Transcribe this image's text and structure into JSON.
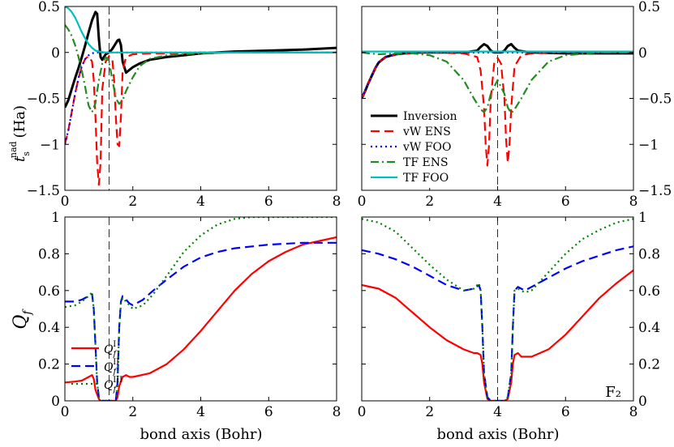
{
  "figure_label": "F₂",
  "chart_data": [
    {
      "id": "top-left",
      "type": "line",
      "xlim": [
        0,
        8
      ],
      "ylim": [
        -1.5,
        0.5
      ],
      "xticks": [
        "0",
        "2",
        "4",
        "6",
        "8"
      ],
      "yticks": [
        "0.5",
        "0",
        "−0.5",
        "−1",
        "−1.5"
      ],
      "ylabel": "t_s^nad (Ha)",
      "bond_length": 1.3,
      "series": [
        {
          "name": "Inversion",
          "color": "#000000",
          "style": "solid",
          "x": [
            0,
            0.1,
            0.2,
            0.3,
            0.4,
            0.5,
            0.6,
            0.7,
            0.8,
            0.9,
            0.95,
            1.0,
            1.05,
            1.1,
            1.15,
            1.2,
            1.3,
            1.4,
            1.5,
            1.55,
            1.6,
            1.65,
            1.7,
            1.8,
            1.9,
            2.0,
            2.2,
            2.5,
            3,
            3.5,
            4,
            5,
            6,
            7,
            8
          ],
          "y": [
            -0.6,
            -0.52,
            -0.4,
            -0.28,
            -0.17,
            -0.05,
            0.08,
            0.22,
            0.35,
            0.44,
            0.42,
            0.15,
            -0.05,
            -0.08,
            -0.05,
            -0.02,
            0.0,
            0.04,
            0.1,
            0.13,
            0.14,
            0.08,
            -0.1,
            -0.22,
            -0.19,
            -0.16,
            -0.12,
            -0.08,
            -0.05,
            -0.03,
            -0.01,
            0.01,
            0.02,
            0.03,
            0.05
          ]
        },
        {
          "name": "vW ENS",
          "color": "#ff0000",
          "style": "dashed",
          "x": [
            0,
            0.1,
            0.2,
            0.3,
            0.4,
            0.5,
            0.6,
            0.7,
            0.8,
            0.85,
            0.9,
            0.95,
            1.0,
            1.05,
            1.1,
            1.2,
            1.3,
            1.4,
            1.45,
            1.5,
            1.55,
            1.6,
            1.65,
            1.7,
            1.8,
            2,
            2.5,
            3,
            4,
            6,
            8
          ],
          "y": [
            -1.0,
            -0.85,
            -0.65,
            -0.45,
            -0.28,
            -0.15,
            -0.07,
            -0.04,
            -0.1,
            -0.3,
            -0.7,
            -1.2,
            -1.44,
            -1.2,
            -0.4,
            -0.1,
            -0.04,
            -0.08,
            -0.3,
            -0.7,
            -1.0,
            -1.02,
            -0.7,
            -0.2,
            -0.05,
            -0.02,
            -0.01,
            -0.01,
            0,
            0,
            0
          ]
        },
        {
          "name": "vW FOO",
          "color": "#0000ff",
          "style": "dotted",
          "x": [
            0,
            0.1,
            0.2,
            0.3,
            0.4,
            0.5,
            0.6,
            0.7,
            0.8,
            0.9,
            1.0,
            1.2,
            1.5,
            2,
            4,
            8
          ],
          "y": [
            -1.0,
            -0.85,
            -0.65,
            -0.45,
            -0.28,
            -0.15,
            -0.07,
            -0.03,
            -0.01,
            0,
            0,
            0,
            0,
            0,
            0,
            0
          ]
        },
        {
          "name": "TF ENS",
          "color": "#228b22",
          "style": "dashdot",
          "x": [
            0,
            0.1,
            0.2,
            0.3,
            0.4,
            0.5,
            0.6,
            0.7,
            0.8,
            0.9,
            1.0,
            1.1,
            1.2,
            1.3,
            1.4,
            1.5,
            1.6,
            1.7,
            1.8,
            2.0,
            2.2,
            2.5,
            3,
            3.5,
            4,
            5,
            6,
            8
          ],
          "y": [
            0.3,
            0.25,
            0.18,
            0.08,
            -0.05,
            -0.2,
            -0.38,
            -0.58,
            -0.65,
            -0.55,
            -0.3,
            -0.12,
            -0.05,
            -0.1,
            -0.3,
            -0.5,
            -0.56,
            -0.52,
            -0.42,
            -0.27,
            -0.15,
            -0.07,
            -0.03,
            -0.02,
            -0.01,
            0,
            0,
            0
          ]
        },
        {
          "name": "TF FOO",
          "color": "#00bfbf",
          "style": "solid",
          "x": [
            0,
            0.1,
            0.2,
            0.3,
            0.4,
            0.5,
            0.6,
            0.7,
            0.8,
            0.9,
            1.0,
            1.2,
            1.5,
            2,
            4,
            8
          ],
          "y": [
            0.5,
            0.48,
            0.44,
            0.38,
            0.3,
            0.22,
            0.15,
            0.09,
            0.05,
            0.02,
            0.01,
            0,
            0,
            0,
            0,
            0
          ]
        }
      ]
    },
    {
      "id": "top-right",
      "type": "line",
      "xlim": [
        0,
        8
      ],
      "ylim": [
        -1.5,
        0.5
      ],
      "xticks": [
        "0",
        "2",
        "4",
        "6",
        "8"
      ],
      "yticks": [
        "0.5",
        "0",
        "−0.5",
        "−1",
        "−1.5"
      ],
      "bond_length": 4.0,
      "series": [
        {
          "name": "Inversion",
          "color": "#000000",
          "style": "solid",
          "x": [
            0,
            0.1,
            0.2,
            0.3,
            0.4,
            0.5,
            0.7,
            1.0,
            1.5,
            2,
            3,
            3.4,
            3.5,
            3.6,
            3.7,
            3.8,
            3.9,
            4.0,
            4.1,
            4.2,
            4.3,
            4.4,
            4.5,
            4.6,
            5,
            6,
            7,
            8
          ],
          "y": [
            -0.5,
            -0.42,
            -0.33,
            -0.25,
            -0.17,
            -0.11,
            -0.05,
            -0.02,
            0,
            0,
            0,
            0.02,
            0.06,
            0.09,
            0.07,
            0.02,
            0,
            0,
            0,
            0.02,
            0.07,
            0.09,
            0.05,
            0.02,
            0,
            -0.01,
            -0.01,
            -0.01
          ]
        },
        {
          "name": "vW ENS",
          "color": "#ff0000",
          "style": "dashed",
          "x": [
            0,
            0.1,
            0.2,
            0.3,
            0.4,
            0.5,
            0.7,
            1.0,
            2,
            3,
            3.4,
            3.5,
            3.6,
            3.65,
            3.7,
            3.75,
            3.8,
            3.9,
            4.0,
            4.1,
            4.2,
            4.25,
            4.3,
            4.35,
            4.4,
            4.5,
            4.7,
            5,
            6,
            8
          ],
          "y": [
            -0.5,
            -0.42,
            -0.33,
            -0.25,
            -0.17,
            -0.11,
            -0.05,
            -0.02,
            0,
            -0.01,
            -0.05,
            -0.2,
            -0.6,
            -1.0,
            -1.23,
            -1.0,
            -0.5,
            -0.12,
            -0.06,
            -0.12,
            -0.5,
            -0.95,
            -1.2,
            -1.0,
            -0.6,
            -0.15,
            -0.03,
            -0.01,
            0,
            0
          ]
        },
        {
          "name": "vW FOO",
          "color": "#0000ff",
          "style": "dotted",
          "x": [
            0,
            0.1,
            0.2,
            0.3,
            0.4,
            0.5,
            0.7,
            1.0,
            1.5,
            2,
            4,
            8
          ],
          "y": [
            -0.5,
            -0.42,
            -0.33,
            -0.25,
            -0.17,
            -0.11,
            -0.05,
            -0.02,
            0,
            0,
            0,
            0
          ]
        },
        {
          "name": "TF ENS",
          "color": "#228b22",
          "style": "dashdot",
          "x": [
            0,
            0.2,
            0.5,
            1.0,
            1.5,
            2,
            2.5,
            3,
            3.3,
            3.5,
            3.6,
            3.7,
            3.8,
            4.0,
            4.2,
            4.3,
            4.4,
            4.5,
            4.7,
            5,
            5.5,
            6,
            7,
            8
          ],
          "y": [
            0,
            -0.01,
            -0.02,
            -0.01,
            -0.01,
            -0.03,
            -0.1,
            -0.3,
            -0.5,
            -0.62,
            -0.65,
            -0.6,
            -0.45,
            -0.3,
            -0.45,
            -0.6,
            -0.66,
            -0.62,
            -0.5,
            -0.3,
            -0.1,
            -0.03,
            0,
            0
          ]
        },
        {
          "name": "TF FOO",
          "color": "#00bfbf",
          "style": "solid",
          "x": [
            0,
            8
          ],
          "y": [
            0.01,
            0.01
          ]
        }
      ]
    },
    {
      "id": "bottom-left",
      "type": "line",
      "xlim": [
        0,
        8
      ],
      "ylim": [
        0,
        1
      ],
      "xticks": [
        "0",
        "2",
        "4",
        "6",
        "8"
      ],
      "yticks": [
        "1",
        "0.8",
        "0.6",
        "0.4",
        "0.2",
        "0"
      ],
      "xlabel": "bond axis (Bohr)",
      "ylabel": "Q_f",
      "bond_length": 1.3,
      "series": [
        {
          "name": "Q_f^I",
          "color": "#ff0000",
          "style": "solid",
          "x": [
            0,
            0.3,
            0.5,
            0.7,
            0.8,
            0.85,
            0.9,
            1.0,
            1.05,
            1.1,
            1.5,
            1.55,
            1.6,
            1.7,
            1.8,
            1.9,
            2.0,
            2.5,
            3,
            3.5,
            4,
            4.5,
            5,
            5.5,
            6,
            6.5,
            7,
            7.5,
            8
          ],
          "y": [
            0.1,
            0.105,
            0.11,
            0.13,
            0.14,
            0.12,
            0.06,
            0.01,
            0,
            0,
            0,
            0.02,
            0.08,
            0.13,
            0.14,
            0.13,
            0.13,
            0.15,
            0.2,
            0.28,
            0.38,
            0.49,
            0.6,
            0.69,
            0.76,
            0.81,
            0.85,
            0.87,
            0.89
          ]
        },
        {
          "name": "Q_f^II",
          "color": "#0000ff",
          "style": "dashed",
          "x": [
            0,
            0.3,
            0.5,
            0.7,
            0.8,
            0.85,
            0.9,
            0.95,
            1.0,
            1.05,
            1.1,
            1.5,
            1.55,
            1.6,
            1.65,
            1.7,
            1.8,
            1.9,
            2.0,
            2.3,
            2.6,
            3,
            3.5,
            4,
            4.5,
            5,
            6,
            7,
            8
          ],
          "y": [
            0.54,
            0.54,
            0.55,
            0.57,
            0.58,
            0.5,
            0.3,
            0.1,
            0.02,
            0,
            0,
            0,
            0.1,
            0.4,
            0.54,
            0.57,
            0.55,
            0.53,
            0.52,
            0.55,
            0.6,
            0.66,
            0.73,
            0.78,
            0.81,
            0.83,
            0.85,
            0.86,
            0.86
          ]
        },
        {
          "name": "Q_f^III",
          "color": "#008000",
          "style": "dotted",
          "x": [
            0,
            0.3,
            0.5,
            0.7,
            0.8,
            0.85,
            0.9,
            0.95,
            1.0,
            1.05,
            1.1,
            1.5,
            1.55,
            1.6,
            1.65,
            1.7,
            1.8,
            2.0,
            2.3,
            2.6,
            3,
            3.5,
            4,
            4.5,
            5,
            5.5,
            6,
            7,
            8
          ],
          "y": [
            0.51,
            0.52,
            0.54,
            0.57,
            0.59,
            0.5,
            0.3,
            0.1,
            0.02,
            0,
            0,
            0,
            0.1,
            0.4,
            0.53,
            0.56,
            0.54,
            0.5,
            0.52,
            0.58,
            0.68,
            0.81,
            0.9,
            0.96,
            0.99,
            1.0,
            1.0,
            1.0,
            1.0
          ]
        }
      ]
    },
    {
      "id": "bottom-right",
      "type": "line",
      "xlim": [
        0,
        8
      ],
      "ylim": [
        0,
        1
      ],
      "xticks": [
        "0",
        "2",
        "4",
        "6",
        "8"
      ],
      "yticks": [
        "1",
        "0.8",
        "0.6",
        "0.4",
        "0.2",
        "0"
      ],
      "xlabel": "bond axis (Bohr)",
      "bond_length": 4.0,
      "series": [
        {
          "name": "Q_f^I",
          "color": "#ff0000",
          "style": "solid",
          "x": [
            0,
            0.5,
            1.0,
            1.5,
            2.0,
            2.5,
            3.0,
            3.3,
            3.4,
            3.5,
            3.55,
            3.6,
            3.7,
            3.8,
            4.2,
            4.3,
            4.4,
            4.45,
            4.5,
            4.6,
            4.7,
            5.0,
            5.5,
            6,
            6.5,
            7,
            7.5,
            8
          ],
          "y": [
            0.63,
            0.61,
            0.56,
            0.48,
            0.4,
            0.33,
            0.28,
            0.26,
            0.26,
            0.25,
            0.2,
            0.1,
            0.01,
            0,
            0,
            0.01,
            0.1,
            0.2,
            0.25,
            0.26,
            0.24,
            0.24,
            0.28,
            0.36,
            0.46,
            0.56,
            0.64,
            0.71
          ]
        },
        {
          "name": "Q_f^II",
          "color": "#0000ff",
          "style": "dashed",
          "x": [
            0,
            0.5,
            1.0,
            1.5,
            2.0,
            2.5,
            3.0,
            3.3,
            3.45,
            3.5,
            3.55,
            3.6,
            3.7,
            3.8,
            4.2,
            4.3,
            4.4,
            4.45,
            4.5,
            4.6,
            4.8,
            5.0,
            5.5,
            6,
            6.5,
            7,
            7.5,
            8
          ],
          "y": [
            0.82,
            0.8,
            0.77,
            0.73,
            0.68,
            0.63,
            0.6,
            0.61,
            0.63,
            0.6,
            0.4,
            0.15,
            0.02,
            0,
            0,
            0.02,
            0.15,
            0.4,
            0.6,
            0.62,
            0.6,
            0.62,
            0.67,
            0.72,
            0.76,
            0.79,
            0.82,
            0.84
          ]
        },
        {
          "name": "Q_f^III",
          "color": "#008000",
          "style": "dotted",
          "x": [
            0,
            0.5,
            1.0,
            1.5,
            2.0,
            2.5,
            3.0,
            3.3,
            3.45,
            3.5,
            3.55,
            3.6,
            3.7,
            3.8,
            4.2,
            4.3,
            4.4,
            4.45,
            4.5,
            4.6,
            4.8,
            5.0,
            5.5,
            6,
            6.5,
            7,
            7.5,
            8
          ],
          "y": [
            0.99,
            0.97,
            0.92,
            0.83,
            0.74,
            0.66,
            0.6,
            0.61,
            0.64,
            0.6,
            0.4,
            0.15,
            0.02,
            0,
            0,
            0.02,
            0.15,
            0.4,
            0.6,
            0.61,
            0.59,
            0.6,
            0.7,
            0.8,
            0.88,
            0.93,
            0.97,
            0.99
          ]
        }
      ]
    }
  ],
  "legend_top": {
    "items": [
      {
        "label": "Inversion",
        "color": "#000000",
        "style": "solid"
      },
      {
        "label": "vW ENS",
        "color": "#ff0000",
        "style": "dashed"
      },
      {
        "label": "vW FOO",
        "color": "#0000ff",
        "style": "dotted"
      },
      {
        "label": "TF ENS",
        "color": "#228b22",
        "style": "dashdot"
      },
      {
        "label": "TF FOO",
        "color": "#00bfbf",
        "style": "solid"
      }
    ]
  },
  "legend_bottom": {
    "items": [
      {
        "label": "Q",
        "sub": "f",
        "sup": "I",
        "color": "#ff0000",
        "style": "solid"
      },
      {
        "label": "Q",
        "sub": "f",
        "sup": "II",
        "color": "#0000ff",
        "style": "dashed"
      },
      {
        "label": "Q",
        "sub": "f",
        "sup": "III",
        "color": "#008000",
        "style": "dotted"
      }
    ]
  }
}
